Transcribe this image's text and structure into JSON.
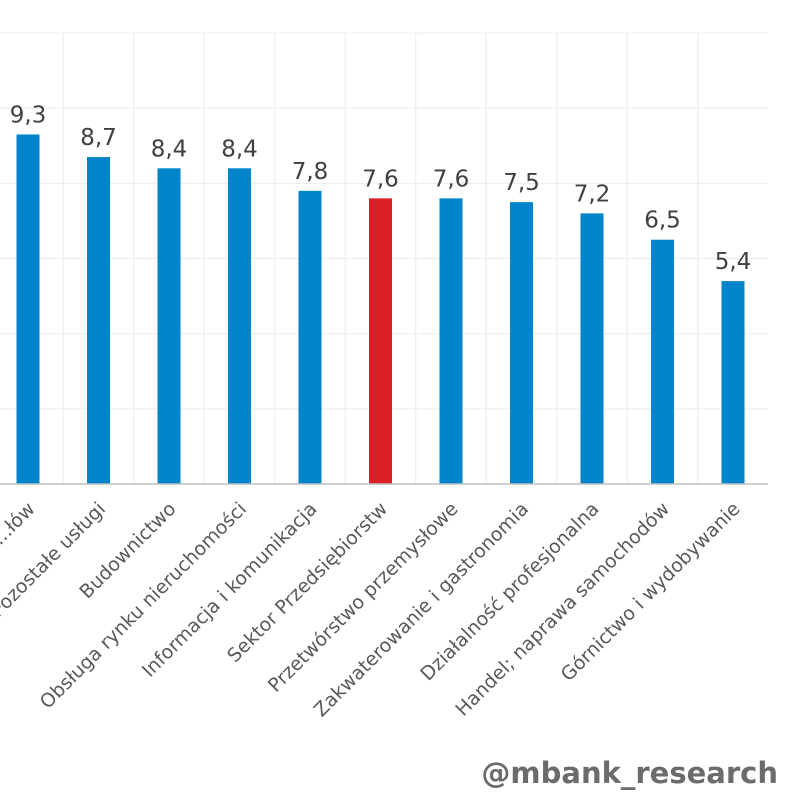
{
  "watermark": "@mbank_research",
  "chart_data": {
    "type": "bar",
    "title": "",
    "xlabel": "",
    "ylabel": "",
    "categories": [
      "...łów",
      "Pozostałe usługi",
      "Budownictwo",
      "Obsługa rynku nieruchomości",
      "Informacja i komunikacja",
      "Sektor Przedsiębiorstw",
      "Przetwórstwo przemysłowe",
      "Zakwaterowanie i gastronomia",
      "Działalność profesjonalna",
      "Handel; naprawa samochodów",
      "Górnictwo i wydobywanie"
    ],
    "values": [
      9.3,
      8.7,
      8.4,
      8.4,
      7.8,
      7.6,
      7.6,
      7.5,
      7.2,
      6.5,
      5.4
    ],
    "value_labels": [
      "9,3",
      "8,7",
      "8,4",
      "8,4",
      "7,8",
      "7,6",
      "7,6",
      "7,5",
      "7,2",
      "6,5",
      "5,4"
    ],
    "highlight_category": "Sektor Przedsiębiorstw",
    "ylim": [
      0,
      12
    ],
    "grid": true,
    "legend": "none",
    "colors": {
      "bar": "#0085CA",
      "highlight": "#DA1F26"
    }
  }
}
